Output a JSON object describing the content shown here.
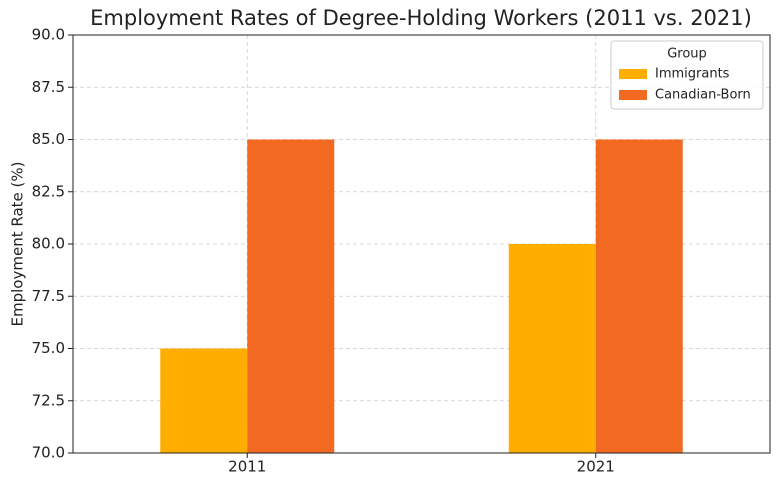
{
  "chart_data": {
    "type": "bar",
    "title": "Employment Rates of Degree-Holding Workers (2011 vs. 2021)",
    "y_label": "Employment Rate (%)",
    "categories": [
      "2011",
      "2021"
    ],
    "series": [
      {
        "name": "Immigrants",
        "color": "#ffae00",
        "values": [
          75,
          80
        ]
      },
      {
        "name": "Canadian-Born",
        "color": "#f26922",
        "values": [
          85,
          85
        ]
      }
    ],
    "ylim": [
      70,
      90
    ],
    "yticks": [
      {
        "value": 70,
        "label": "70.0"
      },
      72.5,
      {
        "value": 75,
        "label": "75.0"
      },
      77.5,
      {
        "value": 80,
        "label": "80.0"
      },
      82.5,
      {
        "value": 85,
        "label": "85.0"
      },
      87.5,
      {
        "value": 90,
        "label": "90.0"
      }
    ],
    "grid": true,
    "legend_title": "Group",
    "legend_position": "upper right"
  }
}
